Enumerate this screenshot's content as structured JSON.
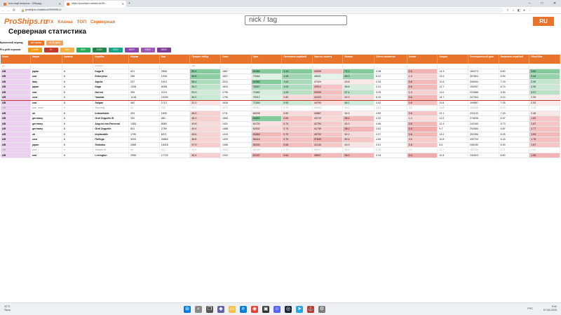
{
  "browser": {
    "tabs": [
      {
        "label": "есть ещё вопросы - Обсужд...",
        "active": false
      },
      {
        "label": "https://proships.ru/stat/ru/s/99...",
        "active": true
      }
    ],
    "new_tab": "+",
    "address": "proships.ru/stat/ru/s/999999-h/",
    "win_controls": [
      "–",
      "□",
      "✕"
    ]
  },
  "site": {
    "logo": "ProShips.ru",
    "menu": [
      "ТТХ",
      "Кланы",
      "ТОП",
      "Серверная"
    ],
    "search_placeholder": "nick / tag",
    "lang": "RU",
    "page_title": "Серверная статистика"
  },
  "filters": {
    "period_label": "Временной период:",
    "period_chips": [
      {
        "label": "всё время",
        "color": "#e8732a"
      },
      {
        "label": "за 28 дней",
        "color": "#f0a460"
      }
    ],
    "rating_label": "Pro-рейт игроков:",
    "rating_chips": [
      {
        "label": "2-4000",
        "color": "#f39c12"
      },
      {
        "label": "0+",
        "color": "#c0392b"
      },
      {
        "label": "500+",
        "color": "#f5b041"
      },
      {
        "label": "800+",
        "color": "#27ae60"
      },
      {
        "label": "1100+",
        "color": "#1e8449"
      },
      {
        "label": "1400+",
        "color": "#17a589"
      },
      {
        "label": "1800+",
        "color": "#8e44ad"
      },
      {
        "label": "2300+",
        "color": "#9b59b6"
      },
      {
        "label": "2800+",
        "color": "#7d3c98"
      }
    ]
  },
  "table": {
    "headers": [
      "Класс",
      "Нация",
      "Уровень",
      "Корабль",
      "Игроки",
      "Бои",
      "Процент побед",
      "Опыт",
      "Урон",
      "Потопленo кораблей",
      "Урон по засвету",
      "Выжил",
      "Сбито самолетов",
      "Захват",
      "Защита",
      "Потенциальный урон",
      "Захвачено кораблей",
      "Убил/Убит"
    ],
    "filter_placeholders": [
      "ав",
      "",
      "",
      "Корабль",
      "",
      "",
      "≥20",
      "",
      "",
      "",
      "",
      "",
      "",
      "",
      "",
      "",
      "",
      ""
    ],
    "rows": [
      {
        "c": [
          "AB",
          "japan",
          "8",
          "Kaga B",
          "521",
          "2808",
          "59.4",
          "1867",
          "84385",
          "1.13",
          "40595",
          "71.2",
          "3.38",
          "0.5",
          "14.3",
          "160073",
          "6.60",
          "3.62"
        ],
        "dim": false,
        "red": false
      },
      {
        "c": [
          "AB",
          "usa",
          "8",
          "Enterprise",
          "285",
          "1935",
          "58.8",
          "1837",
          "70064",
          "1.06",
          "48031",
          "69.3",
          "6.22",
          "1.0",
          "13.9",
          "257804",
          "6.94",
          "3.44"
        ],
        "dim": false,
        "red": false
      },
      {
        "c": [
          "AB",
          "Italy",
          "8",
          "Aquila",
          "237",
          "1913",
          "56.4",
          "2031",
          "84960",
          "1.04",
          "47429",
          "63.8",
          "4.34",
          "0.6",
          "12.6",
          "205054",
          "7.29",
          "2.95"
        ],
        "dim": false,
        "red": false
      },
      {
        "c": [
          "AB",
          "japan",
          "8",
          "Kaga",
          "1208",
          "8258",
          "55.0",
          "1810",
          "78067",
          "1.03",
          "40512",
          "65.6",
          "3.31",
          "0.6",
          "12.7",
          "192007",
          "6.74",
          "2.90"
        ],
        "dim": false,
        "red": false
      },
      {
        "c": [
          "AB",
          "usa",
          "8",
          "Hornet",
          "359",
          "2124",
          "53.9",
          "1790",
          "71582",
          "1.00",
          "39335",
          "67.4",
          "3.25",
          "1.0",
          "11.0",
          "222688",
          "5.90",
          "3.07"
        ],
        "dim": false,
        "red": false
      },
      {
        "c": [
          "AB",
          "ussr",
          "8",
          "Чкалов",
          "1418",
          "10290",
          "54.2",
          "1790",
          "70012",
          "0.80",
          "41023",
          "62.3",
          "8.20",
          "0.6",
          "14.7",
          "247304",
          "6.14",
          "2.55"
        ],
        "dim": false,
        "red": true
      },
      {
        "c": [
          "AB",
          "usa",
          "8",
          "Saipan",
          "462",
          "1713",
          "51.0",
          "1626",
          "71560",
          "0.95",
          "44793",
          "66.1",
          "4.02",
          "0.8",
          "11.6",
          "194857",
          "7.05",
          "2.53"
        ],
        "dim": false,
        "red": false
      },
      {
        "c": [
          "AB",
          "pan_asia",
          "8",
          "Sanxing",
          "81",
          "233",
          "51.0",
          "1670",
          "81611",
          "0.75",
          "45684",
          "64.4",
          "4.51",
          "0.3",
          "14.8",
          "169808",
          "6.93",
          "2.11"
        ],
        "dim": true,
        "red": false
      },
      {
        "c": [
          "AB",
          "uk",
          "8",
          "Indomitable",
          "403",
          "1605",
          "48.3",
          "1711",
          "66298",
          "0.80",
          "42867",
          "64.5",
          "4.50",
          "0.8",
          "22.1",
          "231133",
          "7.00",
          "2.46"
        ],
        "dim": false,
        "red": false
      },
      {
        "c": [
          "AB",
          "germany",
          "8",
          "Graf Zeppelin B",
          "300",
          "884",
          "48.3",
          "1560",
          "84852",
          "0.69",
          "43729",
          "58.4",
          "4.32",
          "1.2",
          "11.0",
          "274838",
          "6.97",
          "1.83"
        ],
        "dim": false,
        "red": false
      },
      {
        "c": [
          "AB",
          "germany",
          "8",
          "August von Parseval",
          "1383",
          "8060",
          "49.8",
          "1431",
          "64720",
          "0.74",
          "41794",
          "62.0",
          "4.66",
          "0.6",
          "12.4",
          "242163",
          "6.73",
          "1.87"
        ],
        "dim": false,
        "red": false
      },
      {
        "c": [
          "AB",
          "germany",
          "8",
          "Graf Zeppelin",
          "841",
          "2759",
          "49.4",
          "1488",
          "62532",
          "0.74",
          "41749",
          "58.2",
          "3.62",
          "0.4",
          "9.7",
          "292584",
          "6.87",
          "1.77"
        ],
        "dim": false,
        "red": false
      },
      {
        "c": [
          "AB",
          "uk",
          "8",
          "Implacable",
          "1750",
          "8371",
          "48.6",
          "1415",
          "53364",
          "0.70",
          "40702",
          "62.2",
          "4.37",
          "0.6",
          "13.2",
          "252354",
          "6.25",
          "1.64"
        ],
        "dim": false,
        "red": false
      },
      {
        "c": [
          "AB",
          "ussr",
          "8",
          "Победа",
          "3025",
          "26863",
          "48.8",
          "1420",
          "56416",
          "0.70",
          "37649",
          "60.4",
          "4.60",
          "0.9",
          "10.8",
          "292703",
          "6.16",
          "1.76"
        ],
        "dim": false,
        "red": false
      },
      {
        "c": [
          "AB",
          "japan",
          "8",
          "Shōkaku",
          "2685",
          "18318",
          "47.9",
          "1368",
          "55330",
          "0.68",
          "41240",
          "63.5",
          "3.51",
          "0.8",
          "8.6",
          "208150",
          "6.90",
          "1.87"
        ],
        "dim": false,
        "red": false
      },
      {
        "c": [
          "AB",
          "usa",
          "8",
          "Saipan B",
          "84",
          "310",
          "44.8",
          "1553",
          "84168",
          "0.75",
          "58027",
          "64.8",
          "4.08",
          "0.2",
          "12.7",
          "182730",
          "6.71",
          "2.11"
        ],
        "dim": true,
        "red": false
      },
      {
        "c": [
          "AB",
          "usa",
          "8",
          "Lexington",
          "2056",
          "17702",
          "48.4",
          "1332",
          "52187",
          "0.64",
          "38697",
          "58.0",
          "4.34",
          "0.4",
          "10.4",
          "232623",
          "6.60",
          "1.55"
        ],
        "dim": false,
        "red": false
      }
    ]
  },
  "taskbar": {
    "temp": "22°C",
    "weather": "Ясно",
    "lang": "РУС",
    "time": "9:41",
    "date": "07.06.2023"
  }
}
